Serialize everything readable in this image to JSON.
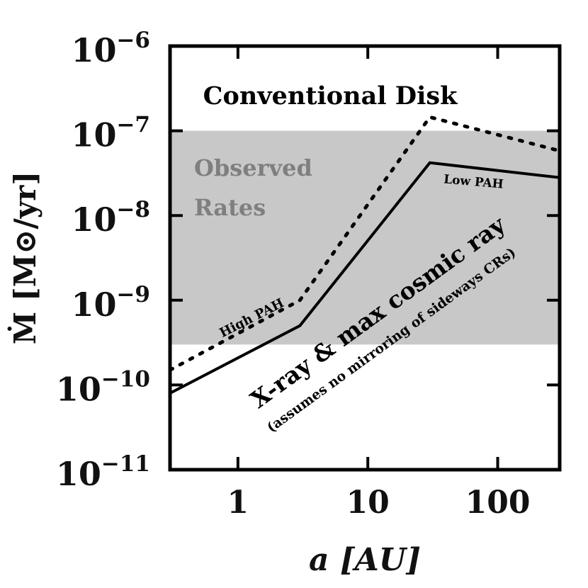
{
  "chart_data": {
    "type": "line",
    "xlabel": "a [AU]",
    "ylabel": "Ṁ [M⊙/yr]",
    "xscale": "log",
    "yscale": "log",
    "xlim": [
      0.3,
      300
    ],
    "ylim": [
      1e-11,
      1e-06
    ],
    "grid": false,
    "x_ticks": [
      {
        "value": 1,
        "label": "1"
      },
      {
        "value": 10,
        "label": "10"
      },
      {
        "value": 100,
        "label": "100"
      }
    ],
    "y_ticks": [
      {
        "value": 1e-11,
        "base": "10",
        "exp": "−11"
      },
      {
        "value": 1e-10,
        "base": "10",
        "exp": "−10"
      },
      {
        "value": 1e-09,
        "base": "10",
        "exp": "−9"
      },
      {
        "value": 1e-08,
        "base": "10",
        "exp": "−8"
      },
      {
        "value": 1e-07,
        "base": "10",
        "exp": "−7"
      },
      {
        "value": 1e-06,
        "base": "10",
        "exp": "−6"
      }
    ],
    "observed_band": {
      "y_range": [
        3e-10,
        1e-07
      ],
      "color": "#c8c8c8"
    },
    "series": [
      {
        "name": "Low PAH",
        "style": "solid",
        "color": "#000000",
        "points": [
          [
            0.3,
            8e-11
          ],
          [
            3,
            5e-10
          ],
          [
            30,
            4.2e-08
          ],
          [
            300,
            2.8e-08
          ]
        ]
      },
      {
        "name": "High PAH",
        "style": "dotted",
        "color": "#000000",
        "points": [
          [
            0.3,
            1.5e-10
          ],
          [
            3,
            1e-09
          ],
          [
            30,
            1.45e-07
          ],
          [
            300,
            5.8e-08
          ]
        ]
      }
    ],
    "annotations": {
      "conventional": "Conventional Disk",
      "observed_line1": "Observed",
      "observed_line2": "Rates",
      "low_pah": "Low PAH",
      "high_pah": "High PAH",
      "main_label": "X-ray & max cosmic ray",
      "sub_label": "(assumes no mirroring of sideways CRs)"
    },
    "colors": {
      "band": "#c8c8c8",
      "observed_text": "#7f7f7f",
      "ink": "#000000"
    }
  }
}
